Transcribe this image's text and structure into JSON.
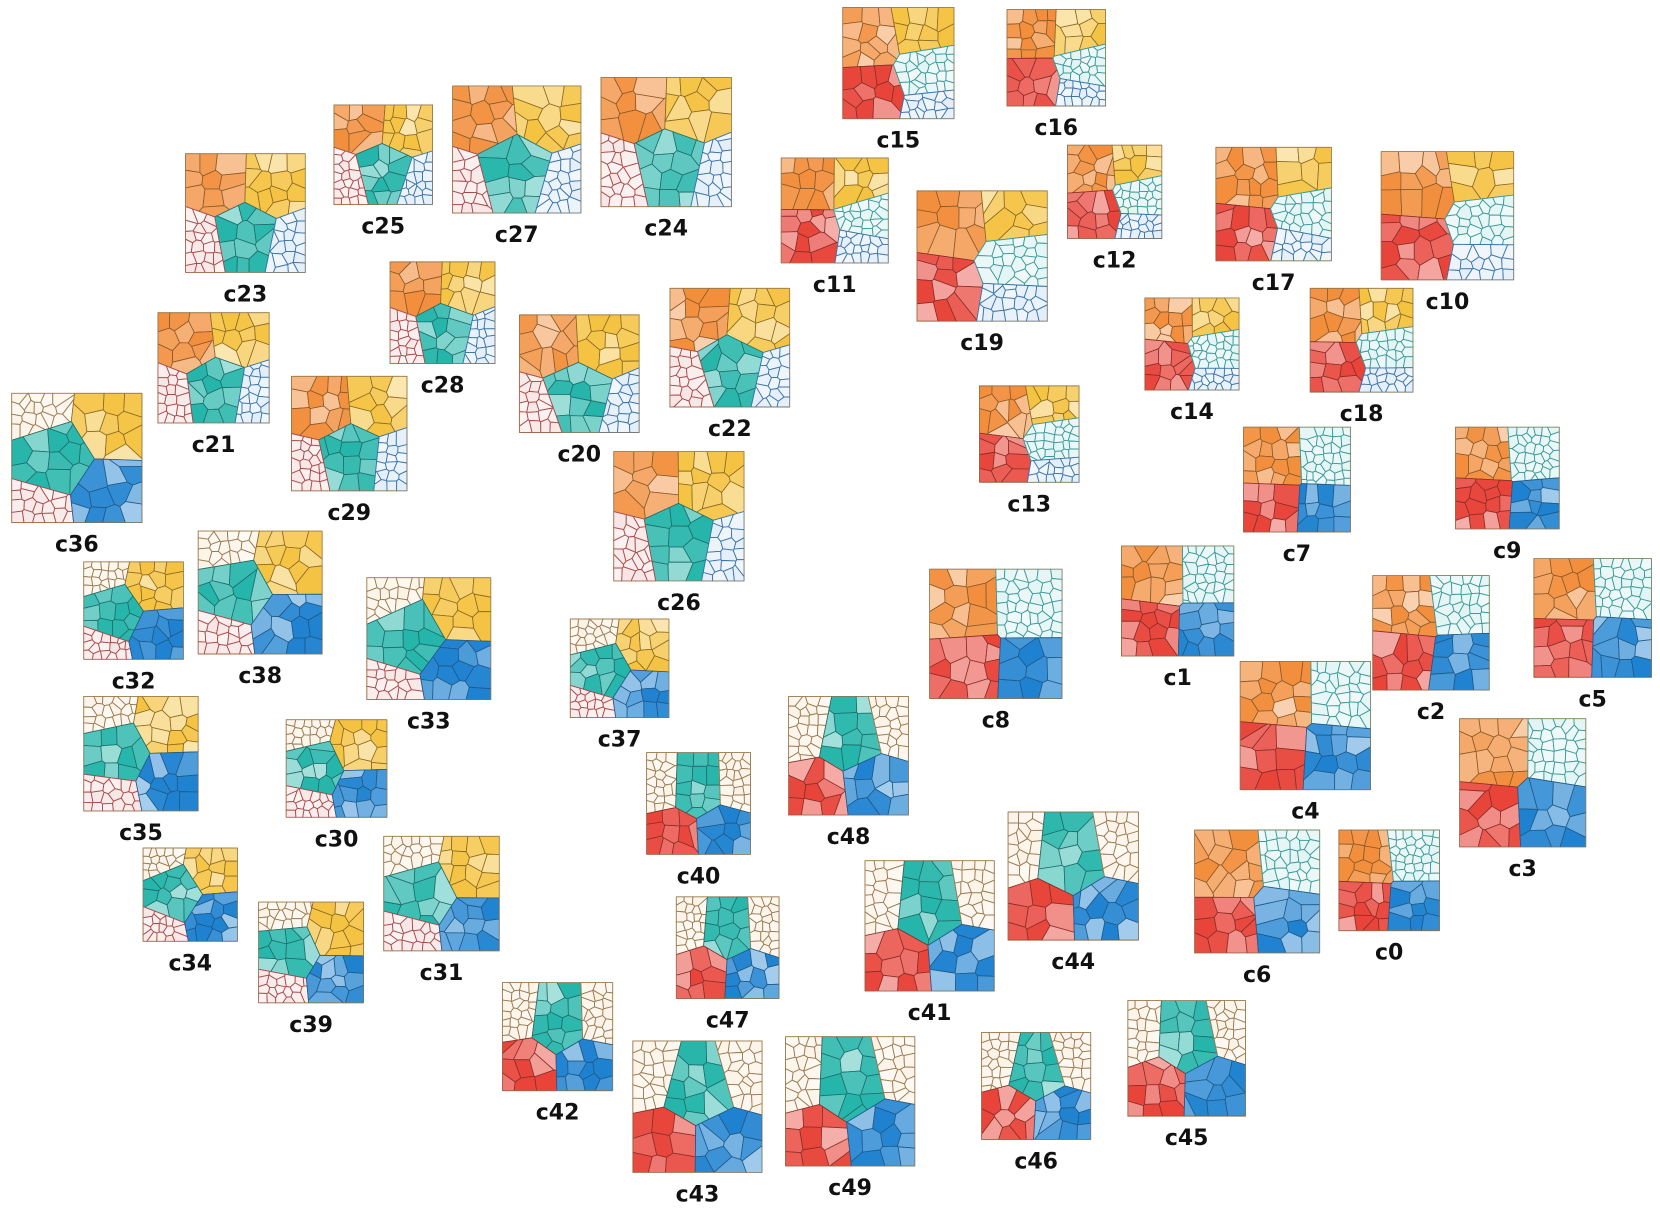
{
  "palette": {
    "orange": "#f28e3c",
    "yellow": "#f5c342",
    "teal": "#25b5aa",
    "red": "#e8443a",
    "blue": "#1f82d0",
    "pale_red": "#f8e6e6",
    "pale_blue": "#e3eef9",
    "pale_cream": "#fcf3e7",
    "pale_teal": "#e2f4f4"
  },
  "glyphs": [
    {
      "label": "c15",
      "pattern": "orange-yellow-red-paleteal-paleblue"
    },
    {
      "label": "c16",
      "pattern": "orange-yellow-red-paleteal-paleblue"
    },
    {
      "label": "c25",
      "pattern": "orange-yellow-teal-palered-paleblue"
    },
    {
      "label": "c27",
      "pattern": "orange-yellow-teal-palered-paleblue"
    },
    {
      "label": "c24",
      "pattern": "orange-yellow-teal-palered-paleblue"
    },
    {
      "label": "c23",
      "pattern": "orange-yellow-teal-palered-paleblue"
    },
    {
      "label": "c11",
      "pattern": "orange-yellow-red-paleteal-paleblue"
    },
    {
      "label": "c19",
      "pattern": "orange-yellow-red-paleteal-paleblue"
    },
    {
      "label": "c12",
      "pattern": "orange-yellow-red-paleteal-paleblue"
    },
    {
      "label": "c17",
      "pattern": "orange-yellow-red-paleteal-paleblue"
    },
    {
      "label": "c10",
      "pattern": "orange-yellow-red-paleteal-paleblue"
    },
    {
      "label": "c28",
      "pattern": "orange-yellow-teal-palered-paleblue"
    },
    {
      "label": "c21",
      "pattern": "orange-yellow-teal-palered-paleblue"
    },
    {
      "label": "c20",
      "pattern": "orange-yellow-teal-palered-paleblue"
    },
    {
      "label": "c22",
      "pattern": "orange-yellow-teal-palered-paleblue"
    },
    {
      "label": "c14",
      "pattern": "orange-yellow-red-paleteal-paleblue"
    },
    {
      "label": "c18",
      "pattern": "orange-yellow-red-paleteal-paleblue"
    },
    {
      "label": "c36",
      "pattern": "palecream-yellow-teal-palered-blue"
    },
    {
      "label": "c29",
      "pattern": "orange-yellow-teal-palered-paleblue"
    },
    {
      "label": "c13",
      "pattern": "orange-yellow-red-paleteal-paleblue"
    },
    {
      "label": "c26",
      "pattern": "orange-yellow-teal-palered-paleblue"
    },
    {
      "label": "c7",
      "pattern": "orange-paleteal-red-blue"
    },
    {
      "label": "c9",
      "pattern": "orange-paleteal-red-blue"
    },
    {
      "label": "c32",
      "pattern": "palecream-yellow-teal-palered-blue"
    },
    {
      "label": "c38",
      "pattern": "palecream-yellow-teal-palered-blue"
    },
    {
      "label": "c33",
      "pattern": "palecream-yellow-teal-palered-blue"
    },
    {
      "label": "c37",
      "pattern": "palecream-yellow-teal-palered-blue"
    },
    {
      "label": "c8",
      "pattern": "orange-paleteal-red-blue"
    },
    {
      "label": "c1",
      "pattern": "orange-paleteal-red-blue"
    },
    {
      "label": "c2",
      "pattern": "orange-paleteal-red-blue"
    },
    {
      "label": "c5",
      "pattern": "orange-paleteal-red-blue"
    },
    {
      "label": "c35",
      "pattern": "palecream-yellow-teal-palered-blue"
    },
    {
      "label": "c30",
      "pattern": "palecream-yellow-teal-palered-blue"
    },
    {
      "label": "c48",
      "pattern": "palecream-teal-palecream-red-blue"
    },
    {
      "label": "c4",
      "pattern": "orange-paleteal-red-blue"
    },
    {
      "label": "c3",
      "pattern": "orange-paleteal-red-blue"
    },
    {
      "label": "c40",
      "pattern": "palecream-teal-palecream-red-blue"
    },
    {
      "label": "c34",
      "pattern": "palecream-yellow-teal-palered-blue"
    },
    {
      "label": "c31",
      "pattern": "palecream-yellow-teal-palered-blue"
    },
    {
      "label": "c44",
      "pattern": "palecream-teal-palecream-red-blue"
    },
    {
      "label": "c41",
      "pattern": "palecream-teal-palecream-red-blue"
    },
    {
      "label": "c6",
      "pattern": "orange-paleteal-red-blue"
    },
    {
      "label": "c0",
      "pattern": "orange-paleteal-red-blue"
    },
    {
      "label": "c39",
      "pattern": "palecream-yellow-teal-palered-blue"
    },
    {
      "label": "c47",
      "pattern": "palecream-teal-palecream-red-blue"
    },
    {
      "label": "c42",
      "pattern": "palecream-teal-palecream-red-blue"
    },
    {
      "label": "c45",
      "pattern": "palecream-teal-palecream-red-blue"
    },
    {
      "label": "c43",
      "pattern": "palecream-teal-palecream-red-blue"
    },
    {
      "label": "c49",
      "pattern": "palecream-teal-palecream-red-blue"
    },
    {
      "label": "c46",
      "pattern": "palecream-teal-palecream-red-blue"
    }
  ]
}
